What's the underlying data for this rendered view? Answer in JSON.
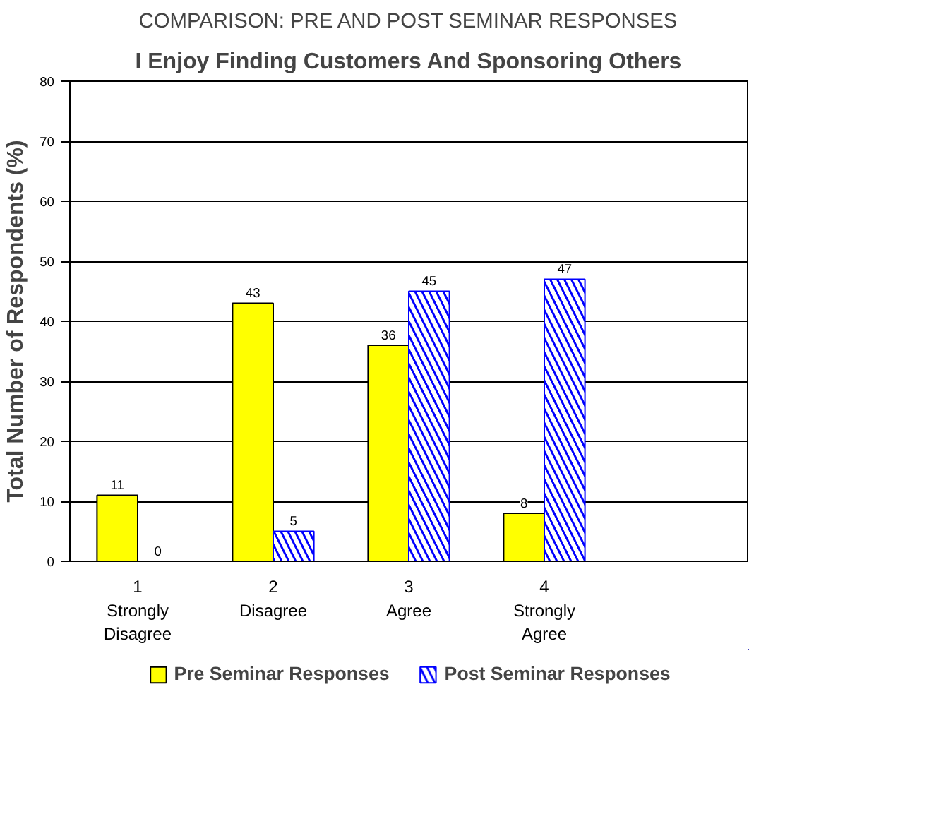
{
  "chart_data": {
    "type": "bar",
    "title": "COMPARISON: PRE AND POST SEMINAR RESPONSES",
    "subtitle": "I Enjoy Finding Customers And Sponsoring Others",
    "ylabel": "Total Number of Respondents (%)",
    "categories": [
      "1\nStrongly\nDisagree",
      "2\nDisagree",
      "3\nAgree",
      "4\nStrongly\nAgree",
      null
    ],
    "series": [
      {
        "name": "Pre Seminar Responses",
        "color": "#ffff00",
        "values": [
          11,
          43,
          36,
          8,
          null
        ]
      },
      {
        "name": "Post Seminar Responses",
        "color": "#0000ff",
        "values": [
          0,
          5,
          45,
          47,
          null
        ]
      }
    ],
    "ylim": [
      0,
      80
    ],
    "yticks": [
      0,
      10,
      20,
      30,
      40,
      50,
      60,
      70,
      80
    ],
    "grid": "y",
    "legend": "bottom",
    "data_labels": true
  }
}
